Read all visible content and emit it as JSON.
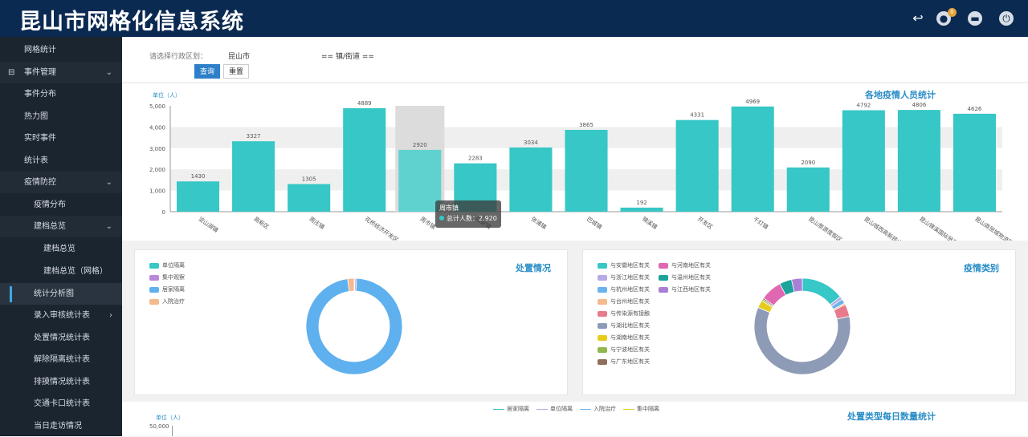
{
  "header": {
    "title": "昆山市网格化信息系统",
    "badge": "0"
  },
  "sidebar": {
    "items": [
      {
        "label": "网格统计"
      },
      {
        "label": "事件管理",
        "icon": "book-icon"
      },
      {
        "label": "事件分布"
      },
      {
        "label": "热力图"
      },
      {
        "label": "实时事件"
      },
      {
        "label": "统计表"
      },
      {
        "label": "疫情防控"
      },
      {
        "label": "疫情分布"
      },
      {
        "label": "建档总览"
      },
      {
        "label": "建档总览"
      },
      {
        "label": "建档总览（网格）"
      },
      {
        "label": "统计分析图"
      },
      {
        "label": "录入审核统计表"
      },
      {
        "label": "处置情况统计表"
      },
      {
        "label": "解除隔离统计表"
      },
      {
        "label": "排摸情况统计表"
      },
      {
        "label": "交通卡口统计表"
      },
      {
        "label": "当日走访情况"
      }
    ]
  },
  "filter": {
    "label": "请选择行政区划：",
    "city": "昆山市",
    "town": "== 镇/街道 ==",
    "query": "查询",
    "reset": "重置"
  },
  "bar_panel": {
    "unit": "单位（人）",
    "title": "各地疫情人员统计",
    "tooltip_title": "周市镇",
    "tooltip_label": "总计人数：2,920"
  },
  "chart_data": [
    {
      "type": "bar",
      "title": "各地疫情人员统计",
      "ylabel": "单位（人）",
      "ylim": [
        0,
        5000
      ],
      "yticks": [
        "0",
        "1,000",
        "2,000",
        "3,000",
        "4,000",
        "5,000"
      ],
      "categories": [
        "淀山湖镇",
        "高新区",
        "周庄镇",
        "花桥经济开发区",
        "周市镇",
        "陆家镇",
        "张浦镇",
        "巴城镇",
        "锦溪镇",
        "开发区",
        "千灯镇",
        "昆山旅游度假区",
        "昆山城西高新技术",
        "昆山锦溪国际贸易",
        "昆山商贸城物流园区"
      ],
      "values": [
        1430,
        3327,
        1305,
        4889,
        2920,
        2283,
        3034,
        3865,
        192,
        4331,
        4969,
        2090,
        4792,
        4806,
        4626
      ],
      "labels": [
        "1430",
        "3327",
        "1305",
        "4889",
        "2920",
        "2283",
        "3034",
        "3865",
        "192",
        "4331",
        "4969",
        "2090",
        "4792",
        "4806",
        "4626"
      ],
      "grid": true,
      "highlight_index": 4
    },
    {
      "type": "pie",
      "title": "处置情况",
      "series": [
        {
          "name": "单位隔离",
          "value": 0.3,
          "color": "#36c7c6"
        },
        {
          "name": "集中观察",
          "value": 0.5,
          "color": "#b988d8"
        },
        {
          "name": "居家隔离",
          "value": 97.0,
          "color": "#5fb0ee"
        },
        {
          "name": "入院治疗",
          "value": 2.2,
          "color": "#f4b98c"
        }
      ]
    },
    {
      "type": "pie",
      "title": "疫情类别",
      "series": [
        {
          "name": "与安徽地区有关",
          "value": 14.0,
          "color": "#36c7c6"
        },
        {
          "name": "与浙江地区有关",
          "value": 1.0,
          "color": "#b7a9e6"
        },
        {
          "name": "与杭州地区有关",
          "value": 1.5,
          "color": "#6ab3ec"
        },
        {
          "name": "与台州地区有关",
          "value": 0.5,
          "color": "#f4b98c"
        },
        {
          "name": "与传染源有接触",
          "value": 4.0,
          "color": "#e77b8c"
        },
        {
          "name": "与湖北地区有关",
          "value": 58.0,
          "color": "#8e9bb6"
        },
        {
          "name": "与湖南地区有关",
          "value": 2.5,
          "color": "#e6cc1d"
        },
        {
          "name": "与宁波地区有关",
          "value": 0.5,
          "color": "#93b64e"
        },
        {
          "name": "与广东地区有关",
          "value": 0.5,
          "color": "#8f6f5c"
        },
        {
          "name": "与河南地区有关",
          "value": 7.0,
          "color": "#e068b3"
        },
        {
          "name": "与温州地区有关",
          "value": 4.0,
          "color": "#1ba39c"
        },
        {
          "name": "与江西地区有关",
          "value": 3.5,
          "color": "#a97fd6"
        }
      ]
    },
    {
      "type": "line",
      "title": "处置类型每日数量统计",
      "ylabel": "单位（人）",
      "yticks": [
        "50,000"
      ],
      "series": [
        {
          "name": "居家隔离"
        },
        {
          "name": "单位隔离"
        },
        {
          "name": "入院治疗"
        },
        {
          "name": "集中隔离"
        }
      ]
    }
  ]
}
